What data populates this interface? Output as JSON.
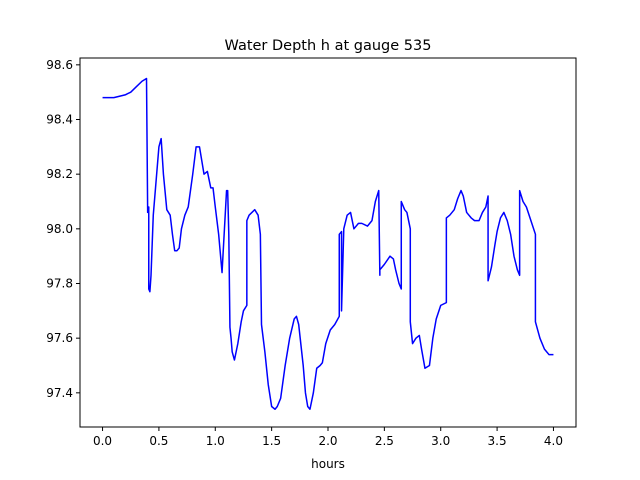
{
  "chart_data": {
    "type": "line",
    "title": "Water Depth h at gauge 535",
    "xlabel": "hours",
    "ylabel": "",
    "xlim": [
      -0.2,
      4.2
    ],
    "ylim": [
      97.275,
      98.625
    ],
    "xticks": [
      0.0,
      0.5,
      1.0,
      1.5,
      2.0,
      2.5,
      3.0,
      3.5,
      4.0
    ],
    "xtick_labels": [
      "0.0",
      "0.5",
      "1.0",
      "1.5",
      "2.0",
      "2.5",
      "3.0",
      "3.5",
      "4.0"
    ],
    "yticks": [
      97.4,
      97.6,
      97.8,
      98.0,
      98.2,
      98.4,
      98.6
    ],
    "ytick_labels": [
      "97.4",
      "97.6",
      "97.8",
      "98.0",
      "98.2",
      "98.4",
      "98.6"
    ],
    "grid": false,
    "series": [
      {
        "color": "#0000ff",
        "x": [
          0.0,
          0.1,
          0.2,
          0.25,
          0.3,
          0.35,
          0.39,
          0.4,
          0.4,
          0.41,
          0.41,
          0.42,
          0.43,
          0.45,
          0.47,
          0.5,
          0.52,
          0.54,
          0.57,
          0.6,
          0.62,
          0.64,
          0.66,
          0.68,
          0.7,
          0.73,
          0.76,
          0.8,
          0.83,
          0.86,
          0.88,
          0.9,
          0.93,
          0.96,
          0.98,
          1.0,
          1.03,
          1.06,
          1.1,
          1.11,
          1.12,
          1.13,
          1.14,
          1.15,
          1.17,
          1.2,
          1.23,
          1.25,
          1.28,
          1.28,
          1.3,
          1.35,
          1.38,
          1.4,
          1.41,
          1.44,
          1.47,
          1.5,
          1.53,
          1.55,
          1.58,
          1.62,
          1.66,
          1.7,
          1.72,
          1.74,
          1.78,
          1.8,
          1.82,
          1.84,
          1.87,
          1.9,
          1.93,
          1.95,
          1.98,
          2.02,
          2.06,
          2.1,
          2.1,
          2.12,
          2.12,
          2.14,
          2.17,
          2.2,
          2.23,
          2.27,
          2.3,
          2.35,
          2.39,
          2.42,
          2.45,
          2.46,
          2.46,
          2.5,
          2.55,
          2.58,
          2.6,
          2.63,
          2.65,
          2.65,
          2.68,
          2.7,
          2.73,
          2.73,
          2.75,
          2.78,
          2.81,
          2.83,
          2.86,
          2.9,
          2.93,
          2.96,
          3.0,
          3.05,
          3.05,
          3.08,
          3.12,
          3.15,
          3.18,
          3.2,
          3.23,
          3.27,
          3.3,
          3.34,
          3.37,
          3.4,
          3.42,
          3.42,
          3.45,
          3.48,
          3.5,
          3.53,
          3.56,
          3.59,
          3.62,
          3.65,
          3.68,
          3.7,
          3.7,
          3.73,
          3.76,
          3.8,
          3.84,
          3.84,
          3.88,
          3.92,
          3.96,
          4.0
        ],
        "y": [
          98.48,
          98.48,
          98.49,
          98.5,
          98.52,
          98.54,
          98.55,
          98.07,
          98.06,
          98.08,
          97.78,
          97.77,
          97.83,
          98.05,
          98.15,
          98.3,
          98.33,
          98.2,
          98.07,
          98.05,
          97.98,
          97.92,
          97.92,
          97.93,
          98.0,
          98.05,
          98.08,
          98.2,
          98.3,
          98.3,
          98.25,
          98.2,
          98.21,
          98.15,
          98.15,
          98.08,
          97.98,
          97.84,
          98.14,
          98.14,
          97.98,
          97.64,
          97.6,
          97.55,
          97.52,
          97.58,
          97.66,
          97.7,
          97.72,
          98.03,
          98.05,
          98.07,
          98.05,
          97.98,
          97.65,
          97.55,
          97.43,
          97.35,
          97.34,
          97.35,
          97.38,
          97.5,
          97.6,
          97.67,
          97.68,
          97.65,
          97.5,
          97.4,
          97.35,
          97.34,
          97.4,
          97.49,
          97.5,
          97.51,
          97.58,
          97.63,
          97.65,
          97.68,
          97.98,
          97.99,
          97.7,
          98.0,
          98.05,
          98.06,
          98.0,
          98.02,
          98.02,
          98.01,
          98.03,
          98.1,
          98.14,
          97.83,
          97.85,
          97.87,
          97.9,
          97.89,
          97.85,
          97.8,
          97.78,
          98.1,
          98.07,
          98.06,
          98.0,
          97.66,
          97.58,
          97.6,
          97.61,
          97.56,
          97.49,
          97.5,
          97.6,
          97.67,
          97.72,
          97.73,
          98.04,
          98.05,
          98.07,
          98.11,
          98.14,
          98.12,
          98.06,
          98.04,
          98.03,
          98.03,
          98.06,
          98.08,
          98.12,
          97.81,
          97.86,
          97.94,
          97.99,
          98.04,
          98.06,
          98.03,
          97.98,
          97.9,
          97.85,
          97.83,
          98.14,
          98.1,
          98.08,
          98.03,
          97.98,
          97.66,
          97.6,
          97.56,
          97.54,
          97.54
        ]
      }
    ]
  }
}
